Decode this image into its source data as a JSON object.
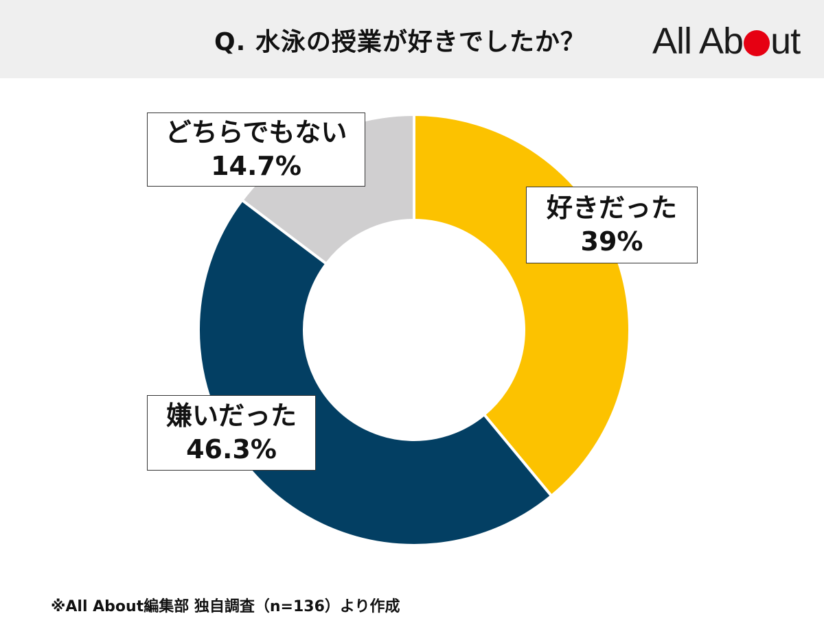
{
  "header": {
    "question": "Q. 水泳の授業が好きでしたか？"
  },
  "logo": {
    "text_left": "All Ab",
    "text_right": "ut",
    "dot_color": "#E60012"
  },
  "chart_data": {
    "type": "pie",
    "variant": "donut",
    "start_angle_deg": 0,
    "direction": "clockwise",
    "categories": [
      "好きだった",
      "嫌いだった",
      "どちらでもない"
    ],
    "values": [
      39,
      46.3,
      14.7
    ],
    "value_labels": [
      "39%",
      "46.3%",
      "14.7%"
    ],
    "colors": [
      "#FCC200",
      "#033F63",
      "#D0CFD0"
    ],
    "legend": "none"
  },
  "labels": {
    "like": {
      "name": "好きだった",
      "value": "39%"
    },
    "dislike": {
      "name": "嫌いだった",
      "value": "46.3%"
    },
    "neither": {
      "name": "どちらでもない",
      "value": "14.7%"
    }
  },
  "footer": {
    "source": "※All About編集部 独自調査（n=136）より作成"
  }
}
